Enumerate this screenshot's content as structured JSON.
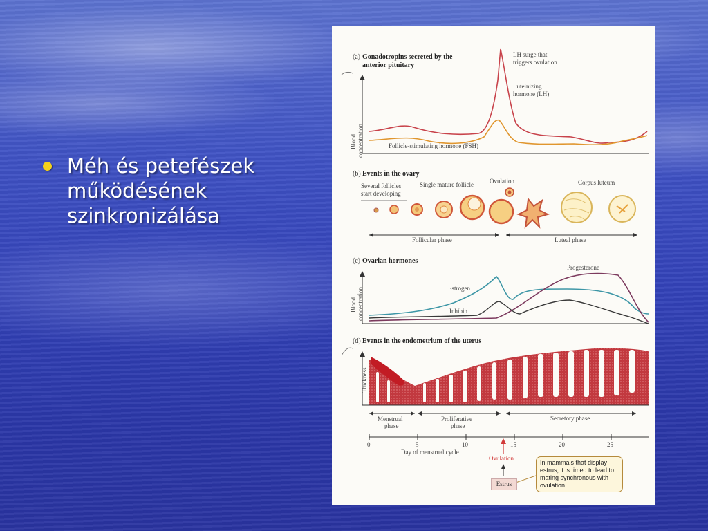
{
  "slide": {
    "bullet_lines": [
      "Méh és petefészek",
      "működésének",
      "szinkronizálása"
    ],
    "colors": {
      "bullet": "#f5d21c",
      "background": "#3342b8",
      "text": "#ffffff"
    }
  },
  "diagram": {
    "panel_a": {
      "title_line1": "Gonadotropins secreted by the",
      "title_line2": "anterior pituitary",
      "letter": "(a)",
      "ylabel_line1": "Blood",
      "ylabel_line2": "concentration",
      "lh_surge_line1": "LH surge that",
      "lh_surge_line2": "triggers ovulation",
      "lh_line1": "Luteinizing",
      "lh_line2": "hormone (LH)",
      "fsh_label": "Follicle-stimulating hormone (FSH)",
      "colors": {
        "lh": "#c8434b",
        "fsh": "#e0962e"
      }
    },
    "panel_b": {
      "letter": "(b)",
      "title": "Events in the ovary",
      "several_line1": "Several follicles",
      "several_line2": "start developing",
      "single_mature": "Single mature follicle",
      "ovulation": "Ovulation",
      "corpus_luteum": "Corpus luteum",
      "follicular_phase": "Follicular phase",
      "luteal_phase": "Luteal phase"
    },
    "panel_c": {
      "letter": "(c)",
      "title": "Ovarian hormones",
      "ylabel_line1": "Blood",
      "ylabel_line2": "concentration",
      "progesterone": "Progesterone",
      "estrogen": "Estrogen",
      "inhibin": "Inhibin",
      "colors": {
        "progesterone": "#7c3a5e",
        "estrogen": "#3d96a6",
        "inhibin": "#3a3a3a"
      }
    },
    "panel_d": {
      "letter": "(d)",
      "title": "Events in the endometrium of the uterus",
      "ylabel": "Thickness",
      "menstrual_line1": "Menstrual",
      "menstrual_line2": "phase",
      "proliferative_line1": "Proliferative",
      "proliferative_line2": "phase",
      "secretory": "Secretory phase",
      "colors": {
        "tissue": "#c2393f"
      }
    },
    "axis": {
      "ticks": [
        "0",
        "5",
        "10",
        "15",
        "20",
        "25"
      ],
      "xlabel": "Day of menstrual cycle",
      "ovulation": "Ovulation",
      "estrus": "Estrus"
    },
    "note": {
      "lines": [
        "In mammals that display",
        "estrus, it is timed to lead to",
        "mating synchronous with",
        "ovulation."
      ]
    }
  }
}
